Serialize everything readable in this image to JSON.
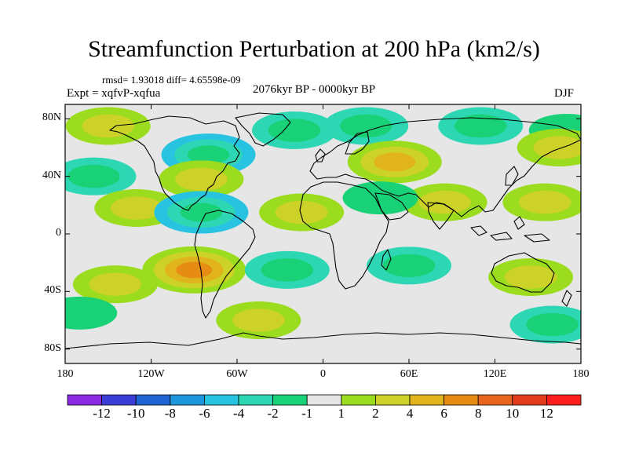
{
  "title": "Streamfunction Perturbation at 200 hPa (km2/s)",
  "stats_line": "rmsd= 1.93018 diff= 4.65598e-09",
  "experiment": "Expt = xqfvP-xqfua",
  "period": "2076kyr BP - 0000kyr BP",
  "season": "DJF",
  "chart_data": {
    "type": "heatmap",
    "projection": "cylindrical equidistant world map",
    "x_ticks": [
      "180",
      "120W",
      "60W",
      "0",
      "60E",
      "120E",
      "180"
    ],
    "y_ticks": [
      "80N",
      "40N",
      "0",
      "40S",
      "80S"
    ],
    "xlim": [
      -180,
      180
    ],
    "ylim": [
      -90,
      90
    ],
    "colorbar": {
      "levels": [
        "-12",
        "-10",
        "-8",
        "-6",
        "-4",
        "-2",
        "-1",
        "1",
        "2",
        "4",
        "6",
        "8",
        "10",
        "12"
      ],
      "colors": [
        "#8a2be2",
        "#3c3cd6",
        "#1e64d2",
        "#1e96dc",
        "#28c3e1",
        "#2dd7b4",
        "#19d278",
        "#e6e6e6",
        "#9bdc1e",
        "#cdd228",
        "#e1b41e",
        "#e68c14",
        "#e6641e",
        "#e13c1e",
        "#ff1e1e"
      ]
    },
    "anomalies": [
      {
        "lon": -150,
        "lat": 75,
        "value": 2
      },
      {
        "lon": -80,
        "lat": 55,
        "value": -4
      },
      {
        "lon": -20,
        "lat": 72,
        "value": -2
      },
      {
        "lon": 30,
        "lat": 75,
        "value": -2
      },
      {
        "lon": 110,
        "lat": 75,
        "value": -2
      },
      {
        "lon": 170,
        "lat": 72,
        "value": -1
      },
      {
        "lon": 165,
        "lat": 60,
        "value": 2
      },
      {
        "lon": 50,
        "lat": 50,
        "value": 4
      },
      {
        "lon": 85,
        "lat": 22,
        "value": 2
      },
      {
        "lon": 155,
        "lat": 22,
        "value": 2
      },
      {
        "lon": -85,
        "lat": 38,
        "value": 2
      },
      {
        "lon": -160,
        "lat": 40,
        "value": -2
      },
      {
        "lon": -130,
        "lat": 18,
        "value": 2
      },
      {
        "lon": -85,
        "lat": 15,
        "value": -4
      },
      {
        "lon": -15,
        "lat": 15,
        "value": 2
      },
      {
        "lon": 40,
        "lat": 25,
        "value": -1
      },
      {
        "lon": -90,
        "lat": -25,
        "value": 6
      },
      {
        "lon": -25,
        "lat": -25,
        "value": -2
      },
      {
        "lon": 60,
        "lat": -22,
        "value": -2
      },
      {
        "lon": 145,
        "lat": -30,
        "value": 2
      },
      {
        "lon": -145,
        "lat": -35,
        "value": 2
      },
      {
        "lon": -45,
        "lat": -60,
        "value": 2
      },
      {
        "lon": 160,
        "lat": -63,
        "value": -2
      },
      {
        "lon": -170,
        "lat": -55,
        "value": -1
      }
    ]
  }
}
